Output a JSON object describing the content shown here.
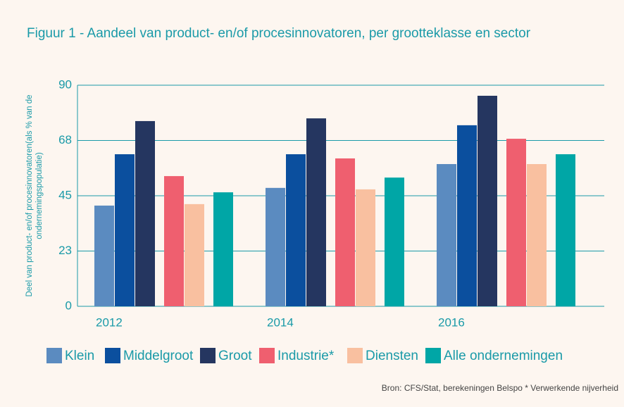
{
  "chart_data": {
    "type": "bar",
    "title": "Figuur 1 - Aandeel van product- en/of procesinnovatoren, per grootteklasse en sector",
    "y_label": [
      "Deel van product- en/of procesinnovatoren(als % van de",
      "ondernemingspopulatie)"
    ],
    "source": "Bron: CFS/Stat, berekeningen Belspo * Verwerkende nijverheid",
    "categories": [
      "2012",
      "2014",
      "2016"
    ],
    "series": [
      {
        "name": "Klein",
        "color": "#5b8bc0",
        "values": [
          41.0,
          48.2,
          57.9
        ]
      },
      {
        "name": "Middelgroot",
        "color": "#0b4f9e",
        "values": [
          61.9,
          61.9,
          73.7
        ]
      },
      {
        "name": "Groot",
        "color": "#253660",
        "values": [
          75.4,
          76.5,
          85.7
        ]
      },
      {
        "name": "Industrie*",
        "color": "#ef5f6f",
        "values": [
          53.0,
          60.2,
          68.2
        ]
      },
      {
        "name": "Diensten",
        "color": "#f9c0a0",
        "values": [
          41.6,
          47.6,
          57.9
        ]
      },
      {
        "name": "Alle ondernemingen",
        "color": "#00a6a6",
        "values": [
          46.4,
          52.4,
          61.9
        ]
      }
    ],
    "ylim": [
      0,
      90
    ],
    "yticks": [
      0,
      {
        "value": 22.5,
        "label": "23"
      },
      45,
      {
        "value": 67.5,
        "label": "68"
      },
      90
    ],
    "grid": true,
    "legend": "bottom"
  }
}
